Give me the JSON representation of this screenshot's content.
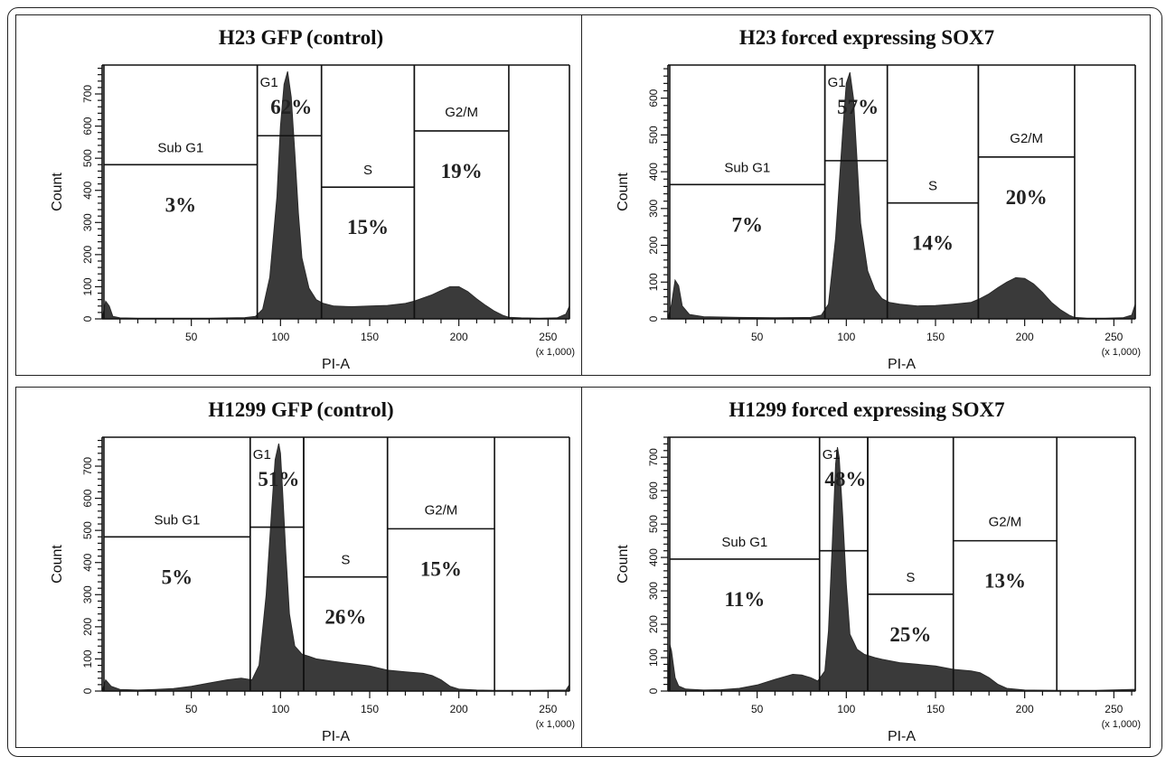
{
  "chart_data": [
    {
      "type": "area",
      "title": "H23 GFP (control)",
      "xlabel": "PI-A",
      "ylabel": "Count",
      "x_multiplier": "(x 1,000)",
      "xlim": [
        0,
        262
      ],
      "ylim": [
        0,
        790
      ],
      "xticks": [
        50,
        100,
        150,
        200,
        250
      ],
      "yticks": [
        0,
        100,
        200,
        300,
        400,
        500,
        600,
        700
      ],
      "series": [
        {
          "x": [
            0,
            2,
            4,
            6,
            10,
            20,
            40,
            60,
            80,
            86,
            90,
            94,
            98,
            100,
            102,
            104,
            106,
            108,
            110,
            112,
            116,
            120,
            124,
            130,
            140,
            150,
            160,
            170,
            175,
            180,
            185,
            190,
            195,
            200,
            205,
            210,
            215,
            220,
            225,
            228,
            235,
            245,
            255,
            260,
            262
          ],
          "y": [
            0,
            55,
            40,
            8,
            3,
            2,
            2,
            2,
            4,
            8,
            30,
            130,
            380,
            600,
            730,
            770,
            690,
            520,
            330,
            190,
            95,
            60,
            48,
            40,
            38,
            40,
            42,
            48,
            55,
            65,
            75,
            88,
            100,
            100,
            85,
            62,
            42,
            24,
            10,
            5,
            3,
            2,
            3,
            15,
            40
          ]
        }
      ],
      "gates": [
        {
          "name": "Sub G1",
          "percent": "3%",
          "x0": 1,
          "x1": 87,
          "top": 480
        },
        {
          "name": "G1",
          "percent": "62%",
          "x0": 87,
          "x1": 123,
          "top": 570
        },
        {
          "name": "S",
          "percent": "15%",
          "x0": 123,
          "x1": 175,
          "top": 410
        },
        {
          "name": "G2/M",
          "percent": "19%",
          "x0": 175,
          "x1": 228,
          "top": 585
        }
      ]
    },
    {
      "type": "area",
      "title": "H23 forced expressing SOX7",
      "xlabel": "PI-A",
      "ylabel": "Count",
      "x_multiplier": "(x 1,000)",
      "xlim": [
        0,
        262
      ],
      "ylim": [
        0,
        690
      ],
      "xticks": [
        50,
        100,
        150,
        200,
        250
      ],
      "yticks": [
        0,
        100,
        200,
        300,
        400,
        500,
        600
      ],
      "series": [
        {
          "x": [
            0,
            2,
            4,
            6,
            8,
            12,
            20,
            40,
            60,
            80,
            86,
            90,
            94,
            98,
            100,
            102,
            104,
            106,
            108,
            112,
            116,
            120,
            124,
            130,
            140,
            150,
            160,
            170,
            175,
            180,
            185,
            190,
            195,
            200,
            205,
            210,
            215,
            220,
            225,
            228,
            235,
            245,
            255,
            260,
            262
          ],
          "y": [
            0,
            40,
            105,
            90,
            35,
            12,
            6,
            4,
            3,
            4,
            10,
            40,
            220,
            510,
            640,
            670,
            600,
            430,
            260,
            130,
            80,
            55,
            45,
            40,
            35,
            36,
            40,
            45,
            55,
            68,
            85,
            100,
            112,
            110,
            95,
            72,
            45,
            25,
            10,
            4,
            2,
            2,
            3,
            10,
            40
          ]
        }
      ],
      "gates": [
        {
          "name": "Sub G1",
          "percent": "7%",
          "x0": 1,
          "x1": 88,
          "top": 365
        },
        {
          "name": "G1",
          "percent": "57%",
          "x0": 88,
          "x1": 123,
          "top": 430
        },
        {
          "name": "S",
          "percent": "14%",
          "x0": 123,
          "x1": 174,
          "top": 315
        },
        {
          "name": "G2/M",
          "percent": "20%",
          "x0": 174,
          "x1": 228,
          "top": 440
        }
      ]
    },
    {
      "type": "area",
      "title": "H1299 GFP (control)",
      "xlabel": "PI-A",
      "ylabel": "Count",
      "x_multiplier": "(x 1,000)",
      "xlim": [
        0,
        262
      ],
      "ylim": [
        0,
        790
      ],
      "xticks": [
        50,
        100,
        150,
        200,
        250
      ],
      "yticks": [
        0,
        100,
        200,
        300,
        400,
        500,
        600,
        700
      ],
      "series": [
        {
          "x": [
            0,
            2,
            5,
            10,
            20,
            30,
            40,
            50,
            60,
            70,
            78,
            84,
            88,
            92,
            95,
            97,
            99,
            100,
            101,
            103,
            105,
            108,
            112,
            116,
            120,
            130,
            140,
            150,
            160,
            170,
            180,
            185,
            190,
            195,
            200,
            210,
            220,
            240,
            260,
            262
          ],
          "y": [
            0,
            35,
            15,
            5,
            3,
            5,
            8,
            15,
            25,
            35,
            40,
            35,
            80,
            300,
            560,
            720,
            770,
            740,
            640,
            430,
            240,
            140,
            115,
            108,
            100,
            92,
            85,
            78,
            65,
            60,
            55,
            48,
            35,
            15,
            6,
            3,
            2,
            2,
            3,
            20
          ]
        }
      ],
      "gates": [
        {
          "name": "Sub G1",
          "percent": "5%",
          "x0": 1,
          "x1": 83,
          "top": 480
        },
        {
          "name": "G1",
          "percent": "51%",
          "x0": 83,
          "x1": 113,
          "top": 510
        },
        {
          "name": "S",
          "percent": "26%",
          "x0": 113,
          "x1": 160,
          "top": 355
        },
        {
          "name": "G2/M",
          "percent": "15%",
          "x0": 160,
          "x1": 220,
          "top": 505
        }
      ]
    },
    {
      "type": "area",
      "title": "H1299 forced expressing SOX7",
      "xlabel": "PI-A",
      "ylabel": "Count",
      "x_multiplier": "(x 1,000)",
      "xlim": [
        0,
        262
      ],
      "ylim": [
        0,
        760
      ],
      "xticks": [
        50,
        100,
        150,
        200,
        250
      ],
      "yticks": [
        0,
        100,
        200,
        300,
        400,
        500,
        600,
        700
      ],
      "series": [
        {
          "x": [
            0,
            1,
            2,
            4,
            6,
            10,
            20,
            30,
            40,
            50,
            60,
            70,
            75,
            80,
            84,
            88,
            90,
            92,
            94,
            95,
            96,
            98,
            100,
            102,
            106,
            110,
            116,
            120,
            130,
            140,
            150,
            160,
            170,
            175,
            180,
            185,
            190,
            200,
            220,
            240,
            262
          ],
          "y": [
            0,
            140,
            120,
            40,
            15,
            6,
            3,
            4,
            8,
            18,
            35,
            50,
            48,
            40,
            30,
            60,
            180,
            420,
            680,
            730,
            700,
            520,
            320,
            170,
            125,
            110,
            100,
            95,
            85,
            80,
            75,
            65,
            60,
            55,
            40,
            20,
            8,
            3,
            2,
            2,
            5
          ]
        }
      ],
      "gates": [
        {
          "name": "Sub G1",
          "percent": "11%",
          "x0": 1,
          "x1": 85,
          "top": 395
        },
        {
          "name": "G1",
          "percent": "48%",
          "x0": 85,
          "x1": 112,
          "top": 420
        },
        {
          "name": "S",
          "percent": "25%",
          "x0": 112,
          "x1": 160,
          "top": 290
        },
        {
          "name": "G2/M",
          "percent": "13%",
          "x0": 160,
          "x1": 218,
          "top": 450
        }
      ]
    }
  ]
}
